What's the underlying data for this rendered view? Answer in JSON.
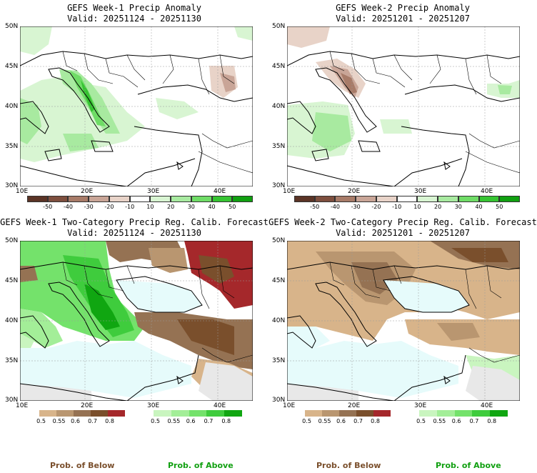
{
  "panels": [
    {
      "title": "GEFS Week-1 Precip Anomaly",
      "valid": "Valid: 20251124 - 20251130"
    },
    {
      "title": "GEFS Week-2 Precip Anomaly",
      "valid": "Valid: 20251201 - 20251207"
    },
    {
      "title": "GEFS Week-1 Two-Category Precip Reg. Calib. Forecast",
      "valid": "Valid: 20251124 - 20251130"
    },
    {
      "title": "GEFS Week-2 Two-Category Precip Reg. Calib. Forecast",
      "valid": "Valid: 20251201 - 20251207"
    }
  ],
  "axes": {
    "lat_labels": [
      "50N",
      "45N",
      "40N",
      "35N",
      "30N"
    ],
    "lon_labels": [
      "10E",
      "20E",
      "30E",
      "40E"
    ]
  },
  "anomaly_colorbar": {
    "labels": [
      "-50",
      "-40",
      "-30",
      "-20",
      "-10",
      "10",
      "20",
      "30",
      "40",
      "50"
    ],
    "colors": [
      "#5b3426",
      "#7e4f3e",
      "#a87b68",
      "#c9a597",
      "#e8d3c8",
      "#ffffff",
      "#d8f5d2",
      "#a8eaa0",
      "#6fdc66",
      "#36c432",
      "#11a011"
    ]
  },
  "prob_colorbars": {
    "below": {
      "labels": [
        "0.5",
        "0.55",
        "0.6",
        "0.7",
        "0.8"
      ],
      "colors": [
        "#d8b48a",
        "#b99670",
        "#957253",
        "#7a4f2c",
        "#a5282b"
      ]
    },
    "above": {
      "labels": [
        "0.5",
        "0.55",
        "0.6",
        "0.7",
        "0.8"
      ],
      "colors": [
        "#c9f5bf",
        "#a3ee98",
        "#74e26b",
        "#3fcc3d",
        "#10a611"
      ]
    }
  },
  "footer": {
    "below_label": "Prob. of Below",
    "above_label": "Prob. of Above",
    "below_color": "#7a4f2c",
    "above_color": "#11a011"
  }
}
